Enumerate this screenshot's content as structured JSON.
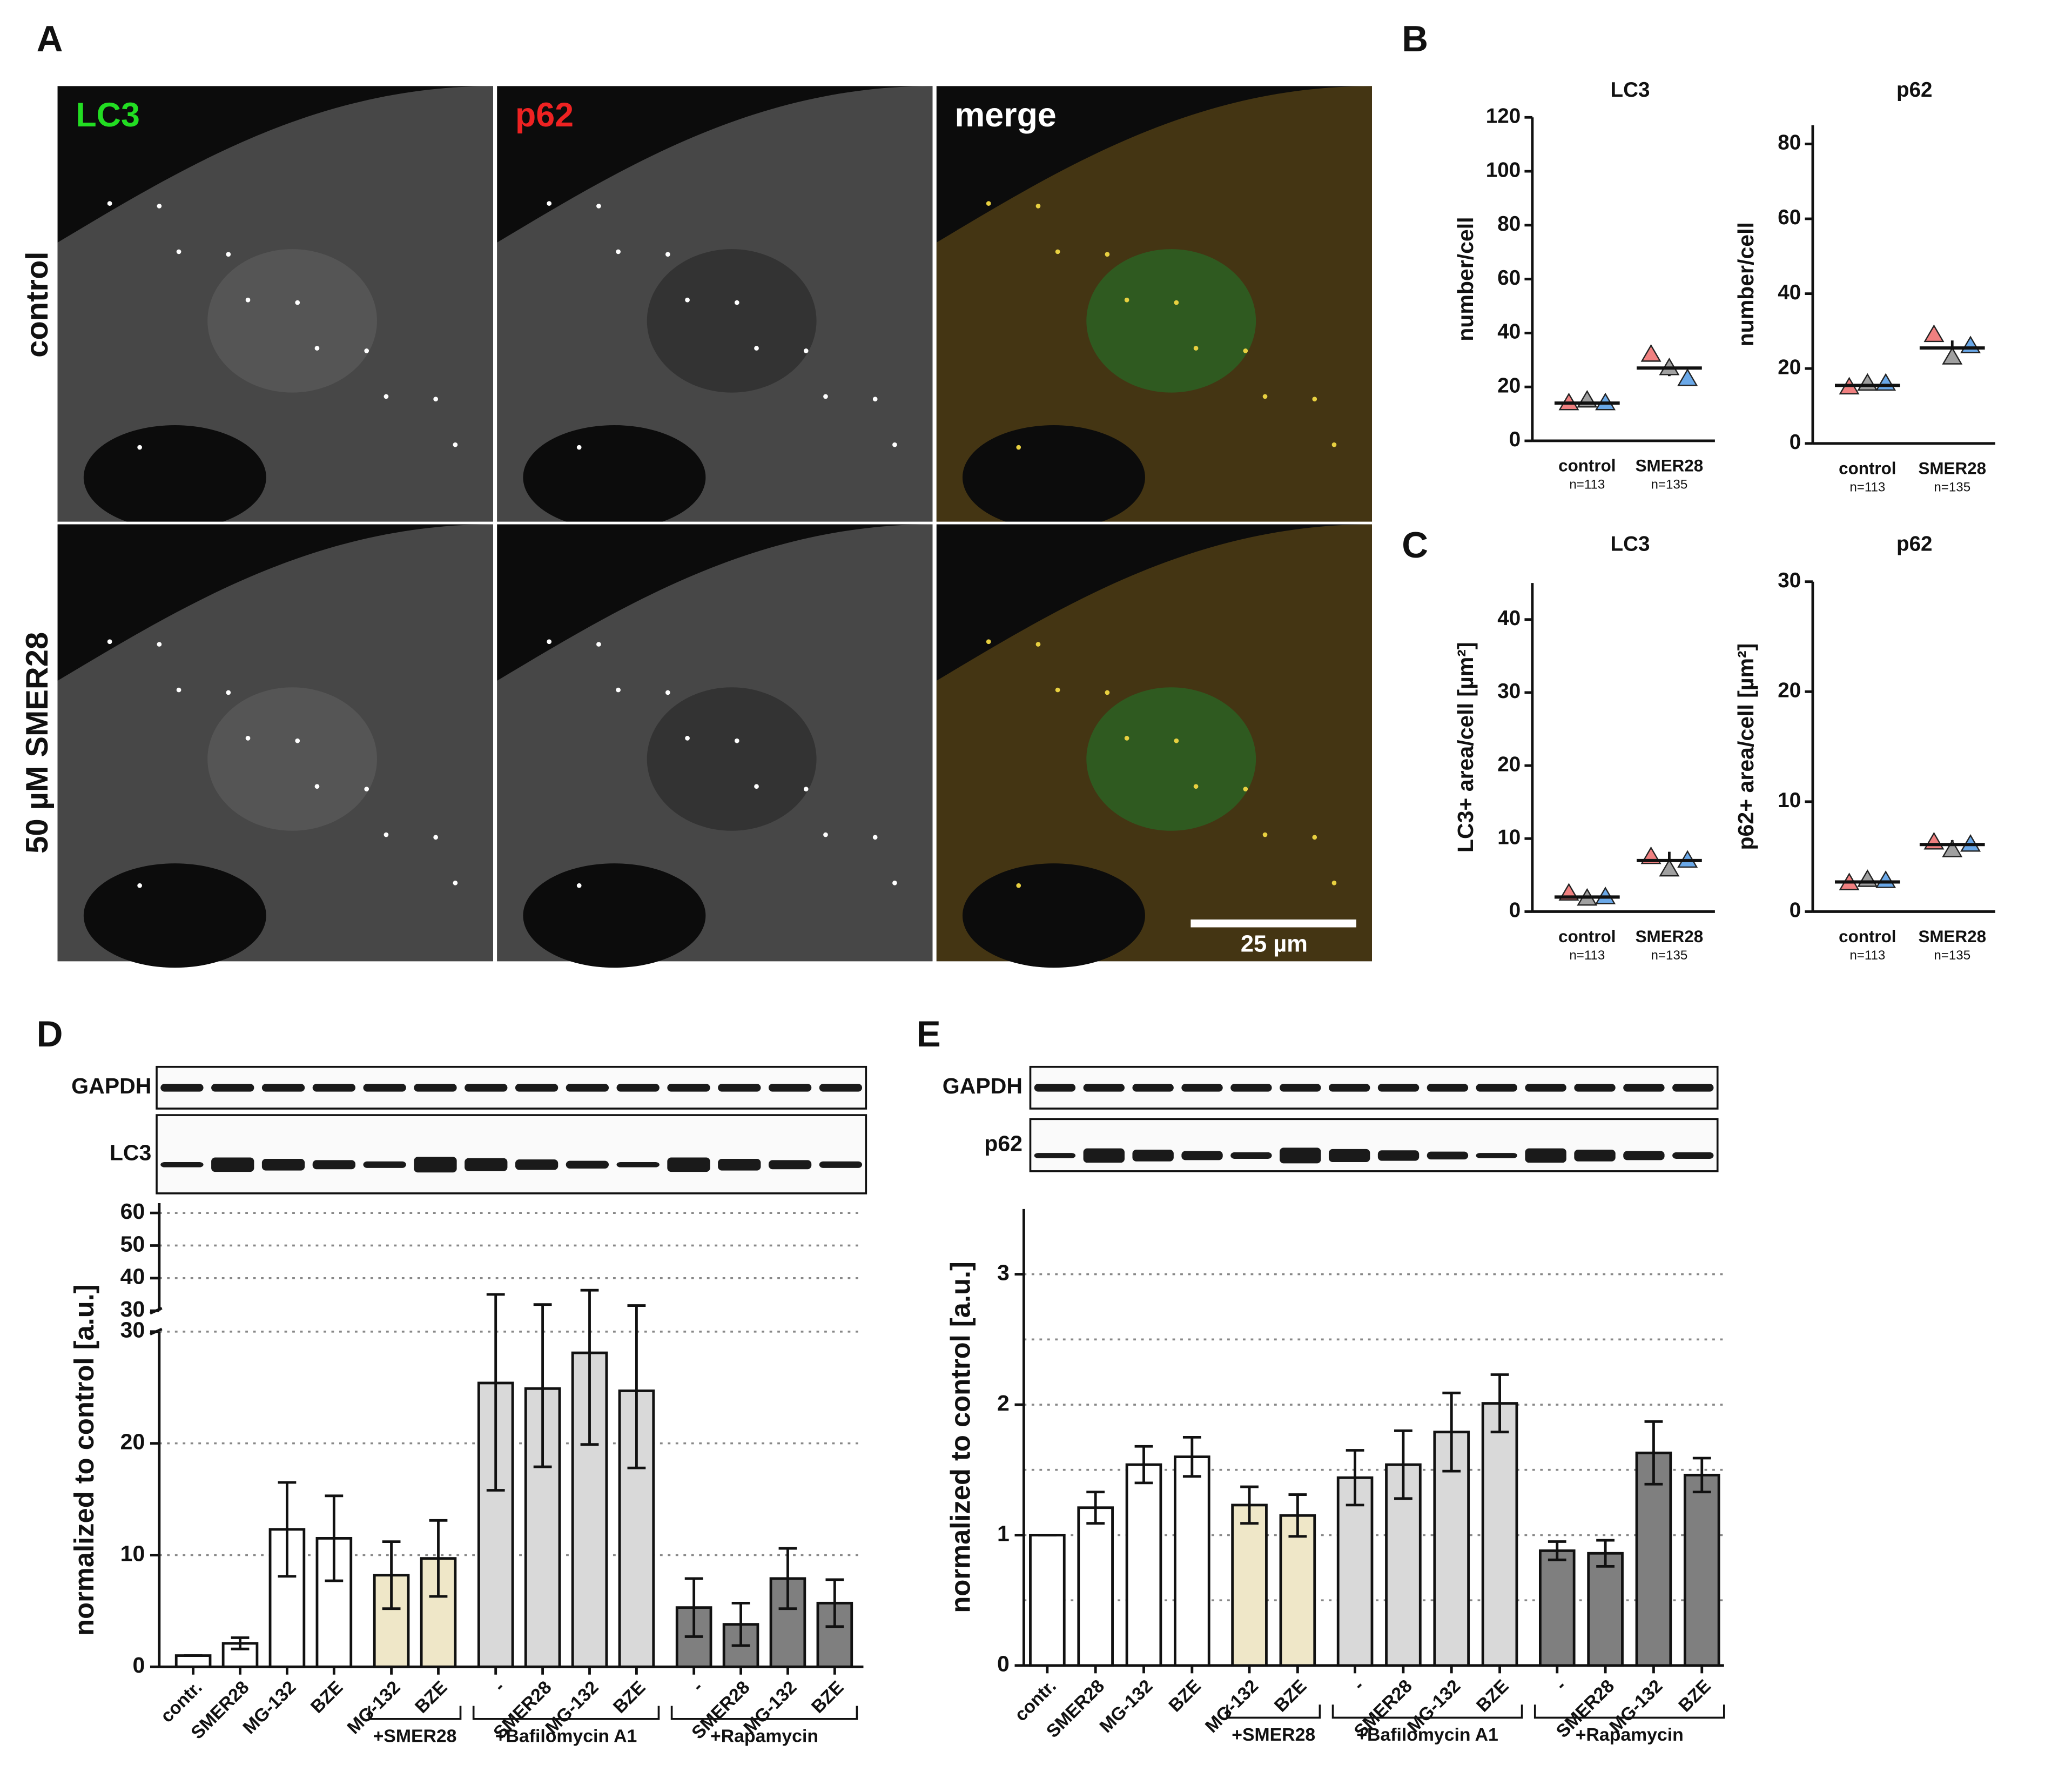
{
  "panel_labels": [
    "A",
    "B",
    "C",
    "D",
    "E"
  ],
  "micrographs": {
    "channels": [
      "LC3",
      "p62",
      "merge"
    ],
    "channel_colors": [
      "#22dd22",
      "#ee2222",
      "#ffffff"
    ],
    "conditions": [
      "control",
      "50 µM SMER28"
    ],
    "scale_bar": "25 µm"
  },
  "blots": {
    "D": [
      "GAPDH",
      "LC3"
    ],
    "E": [
      "GAPDH",
      "p62"
    ]
  },
  "chart_data": [
    {
      "type": "dot",
      "title": "LC3",
      "ylabel": "number/cell",
      "categories": [
        "control",
        "SMER28"
      ],
      "sublabels": [
        "n=113",
        "n=135"
      ],
      "values": [
        14,
        27
      ],
      "errors": [
        1,
        3
      ],
      "replicates": [
        [
          14,
          15,
          14
        ],
        [
          32,
          27,
          23
        ]
      ],
      "replicate_colors": [
        "#f08080",
        "#a0a0a0",
        "#6aa8e8"
      ],
      "ylim": [
        0,
        120
      ],
      "yticks": [
        0,
        20,
        40,
        60,
        80,
        100,
        120
      ]
    },
    {
      "type": "dot",
      "title": "p62",
      "ylabel": "number/cell",
      "categories": [
        "control",
        "SMER28"
      ],
      "sublabels": [
        "n=113",
        "n=135"
      ],
      "values": [
        15.5,
        25.5
      ],
      "errors": [
        0.5,
        2
      ],
      "replicates": [
        [
          15,
          16,
          16
        ],
        [
          29,
          23,
          26
        ]
      ],
      "replicate_colors": [
        "#f08080",
        "#a0a0a0",
        "#6aa8e8"
      ],
      "ylim": [
        0,
        85
      ],
      "yticks": [
        0,
        20,
        40,
        60,
        80
      ]
    },
    {
      "type": "dot",
      "title": "LC3",
      "ylabel": "LC3+ area/cell [µm²]",
      "categories": [
        "control",
        "SMER28"
      ],
      "sublabels": [
        "n=113",
        "n=135"
      ],
      "values": [
        2,
        7
      ],
      "errors": [
        0.3,
        1.2
      ],
      "replicates": [
        [
          2.5,
          1.8,
          2
        ],
        [
          7.5,
          5.8,
          7
        ]
      ],
      "replicate_colors": [
        "#f08080",
        "#a0a0a0",
        "#6aa8e8"
      ],
      "ylim": [
        0,
        45
      ],
      "yticks": [
        0,
        10,
        20,
        30,
        40
      ]
    },
    {
      "type": "dot",
      "title": "p62",
      "ylabel": "p62+ area/cell [µm²]",
      "categories": [
        "control",
        "SMER28"
      ],
      "sublabels": [
        "n=113",
        "n=135"
      ],
      "values": [
        2.7,
        6.1
      ],
      "errors": [
        0.2,
        0.4
      ],
      "replicates": [
        [
          2.6,
          2.9,
          2.8
        ],
        [
          6.3,
          5.6,
          6.1
        ]
      ],
      "replicate_colors": [
        "#f08080",
        "#a0a0a0",
        "#6aa8e8"
      ],
      "ylim": [
        0,
        30
      ],
      "yticks": [
        0,
        10,
        20,
        30
      ]
    },
    {
      "type": "bar",
      "ylabel": "normalized to control [a.u.]",
      "categories": [
        "contr.",
        "SMER28",
        "MG-132",
        "BZE",
        "MG-132",
        "BZE",
        "-",
        "SMER28",
        "MG-132",
        "BZE",
        "-",
        "SMER28",
        "MG-132",
        "BZE"
      ],
      "category_groups": [
        null,
        null,
        null,
        null,
        "+SMER28",
        "+SMER28",
        "+Bafilomycin A1",
        "+Bafilomycin A1",
        "+Bafilomycin A1",
        "+Bafilomycin A1",
        "+Rapamycin",
        "+Rapamycin",
        "+Rapamycin",
        "+Rapamycin"
      ],
      "values": [
        1,
        2.1,
        12.3,
        11.5,
        8.2,
        9.7,
        25.4,
        24.9,
        28.1,
        24.7,
        5.3,
        3.8,
        7.9,
        5.7
      ],
      "errors": [
        0,
        0.5,
        4.2,
        3.8,
        3.0,
        3.4,
        9.6,
        7.0,
        8.2,
        6.9,
        2.6,
        1.9,
        2.7,
        2.1
      ],
      "colors": [
        "#ffffff",
        "#ffffff",
        "#ffffff",
        "#ffffff",
        "#efe7c8",
        "#efe7c8",
        "#d9d9d9",
        "#d9d9d9",
        "#d9d9d9",
        "#d9d9d9",
        "#7f7f7f",
        "#7f7f7f",
        "#7f7f7f",
        "#7f7f7f"
      ],
      "ylim": [
        0,
        30
      ],
      "yticks": [
        0,
        10,
        20,
        30
      ],
      "ylim_upper": [
        30,
        63
      ],
      "yticks_upper": [
        30,
        40,
        50,
        60
      ],
      "grid_lines": [
        10,
        20,
        30,
        40,
        50,
        60
      ]
    },
    {
      "type": "bar",
      "ylabel": "normalized to control [a.u.]",
      "categories": [
        "contr.",
        "SMER28",
        "MG-132",
        "BZE",
        "MG-132",
        "BZE",
        "-",
        "SMER28",
        "MG-132",
        "BZE",
        "-",
        "SMER28",
        "MG-132",
        "BZE"
      ],
      "category_groups": [
        null,
        null,
        null,
        null,
        "+SMER28",
        "+SMER28",
        "+Bafilomycin A1",
        "+Bafilomycin A1",
        "+Bafilomycin A1",
        "+Bafilomycin A1",
        "+Rapamycin",
        "+Rapamycin",
        "+Rapamycin",
        "+Rapamycin"
      ],
      "values": [
        1,
        1.21,
        1.54,
        1.6,
        1.23,
        1.15,
        1.44,
        1.54,
        1.79,
        2.01,
        0.88,
        0.86,
        1.63,
        1.46
      ],
      "errors": [
        0,
        0.12,
        0.14,
        0.15,
        0.14,
        0.16,
        0.21,
        0.26,
        0.3,
        0.22,
        0.07,
        0.1,
        0.24,
        0.13
      ],
      "colors": [
        "#ffffff",
        "#ffffff",
        "#ffffff",
        "#ffffff",
        "#efe7c8",
        "#efe7c8",
        "#d9d9d9",
        "#d9d9d9",
        "#d9d9d9",
        "#d9d9d9",
        "#7f7f7f",
        "#7f7f7f",
        "#7f7f7f",
        "#7f7f7f"
      ],
      "ylim": [
        0,
        3.5
      ],
      "yticks": [
        0,
        1,
        2,
        3
      ],
      "grid_lines": [
        0.5,
        1,
        1.5,
        2,
        2.5,
        3
      ]
    }
  ]
}
